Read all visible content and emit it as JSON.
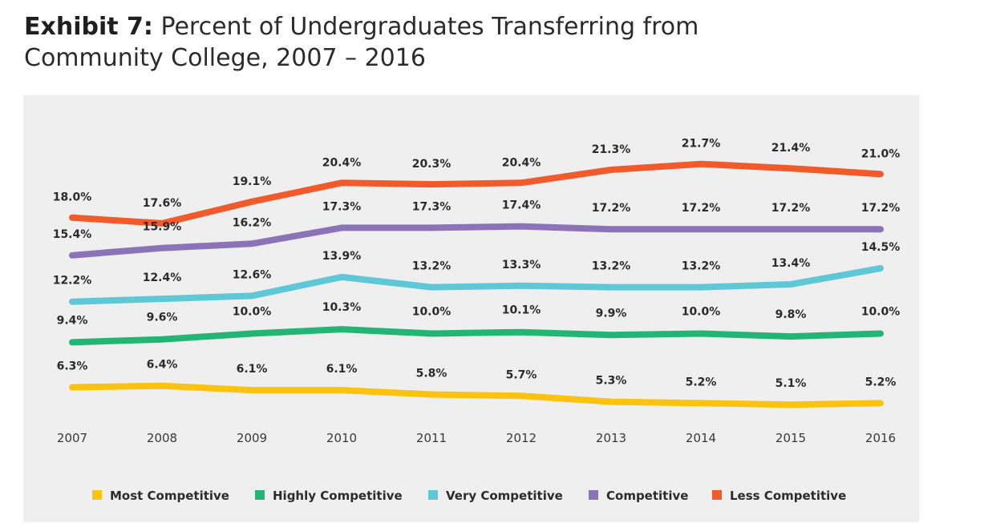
{
  "header": {
    "exhibit_label": "Exhibit 7:",
    "title_line1": "Percent of Undergraduates Transferring from",
    "title_line2": "Community College, 2007 – 2016"
  },
  "chart_data": {
    "type": "line",
    "title": "Exhibit 7: Percent of Undergraduates Transferring from Community College, 2007 – 2016",
    "xlabel": "",
    "ylabel": "",
    "grid": false,
    "legend_position": "bottom",
    "categories": [
      "2007",
      "2008",
      "2009",
      "2010",
      "2011",
      "2012",
      "2013",
      "2014",
      "2015",
      "2016"
    ],
    "series": [
      {
        "name": "Most Competitive",
        "color": "#fbc20f",
        "values": [
          6.3,
          6.4,
          6.1,
          6.1,
          5.8,
          5.7,
          5.3,
          5.2,
          5.1,
          5.2
        ],
        "labels": [
          "6.3%",
          "6.4%",
          "6.1%",
          "6.1%",
          "5.8%",
          "5.7%",
          "5.3%",
          "5.2%",
          "5.1%",
          "5.2%"
        ]
      },
      {
        "name": "Highly Competitive",
        "color": "#22b573",
        "values": [
          9.4,
          9.6,
          10.0,
          10.3,
          10.0,
          10.1,
          9.9,
          10.0,
          9.8,
          10.0
        ],
        "labels": [
          "9.4%",
          "9.6%",
          "10.0%",
          "10.3%",
          "10.0%",
          "10.1%",
          "9.9%",
          "10.0%",
          "9.8%",
          "10.0%"
        ]
      },
      {
        "name": "Very Competitive",
        "color": "#5fc8d6",
        "values": [
          12.2,
          12.4,
          12.6,
          13.9,
          13.2,
          13.3,
          13.2,
          13.2,
          13.4,
          14.5
        ],
        "labels": [
          "12.2%",
          "12.4%",
          "12.6%",
          "13.9%",
          "13.2%",
          "13.3%",
          "13.2%",
          "13.2%",
          "13.4%",
          "14.5%"
        ]
      },
      {
        "name": "Competitive",
        "color": "#8b73b8",
        "values": [
          15.4,
          15.9,
          16.2,
          17.3,
          17.3,
          17.4,
          17.2,
          17.2,
          17.2,
          17.2
        ],
        "labels": [
          "15.4%",
          "15.9%",
          "16.2%",
          "17.3%",
          "17.3%",
          "17.4%",
          "17.2%",
          "17.2%",
          "17.2%",
          "17.2%"
        ]
      },
      {
        "name": "Less Competitive",
        "color": "#f15a2b",
        "values": [
          18.0,
          17.6,
          19.1,
          20.4,
          20.3,
          20.4,
          21.3,
          21.7,
          21.4,
          21.0
        ],
        "labels": [
          "18.0%",
          "17.6%",
          "19.1%",
          "20.4%",
          "20.3%",
          "20.4%",
          "21.3%",
          "21.7%",
          "21.4%",
          "21.0%"
        ]
      }
    ]
  }
}
